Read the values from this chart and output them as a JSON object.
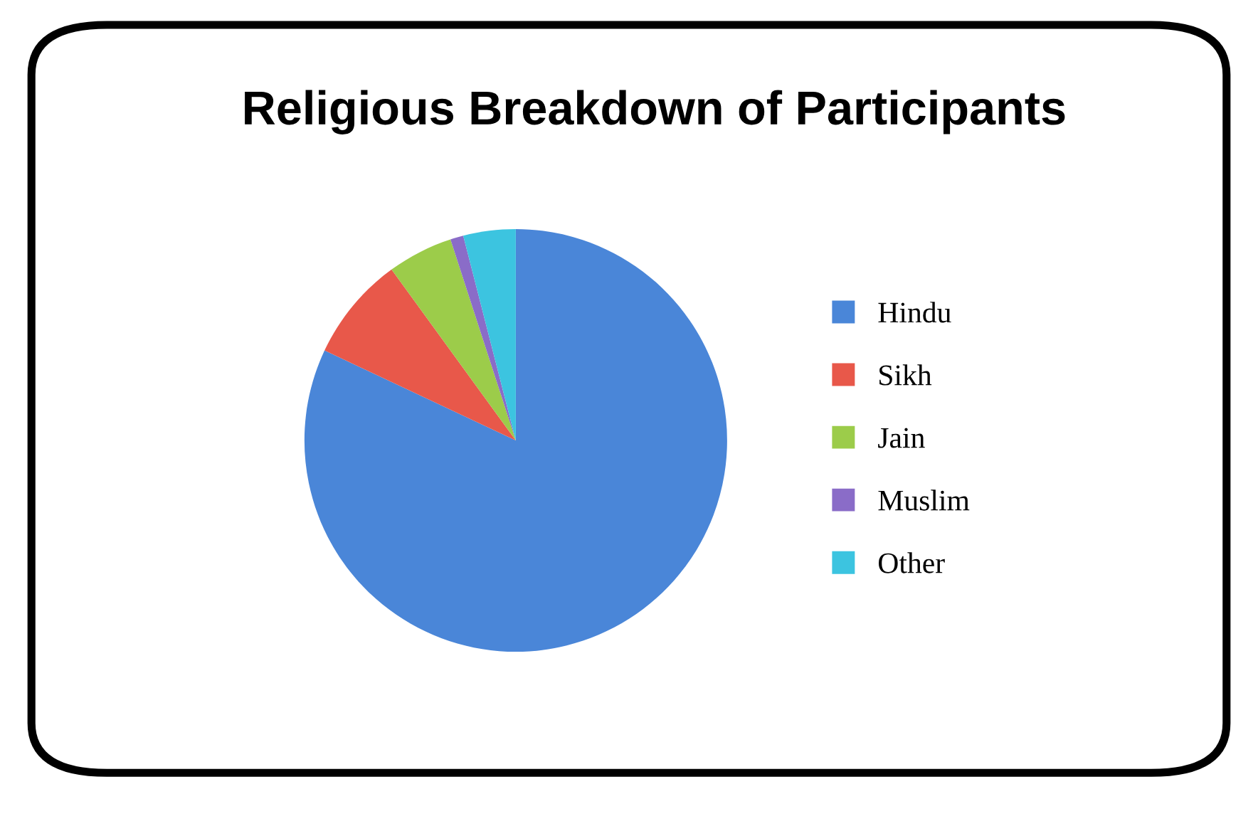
{
  "chart_data": {
    "type": "pie",
    "title": "Religious Breakdown of Participants",
    "categories": [
      "Hindu",
      "Sikh",
      "Jain",
      "Muslim",
      "Other"
    ],
    "values": [
      82,
      8,
      5,
      1,
      4
    ],
    "colors": [
      "#4a86d8",
      "#e8584a",
      "#9ccc4a",
      "#8a6cc8",
      "#3cc4e0"
    ],
    "legend": "right"
  }
}
